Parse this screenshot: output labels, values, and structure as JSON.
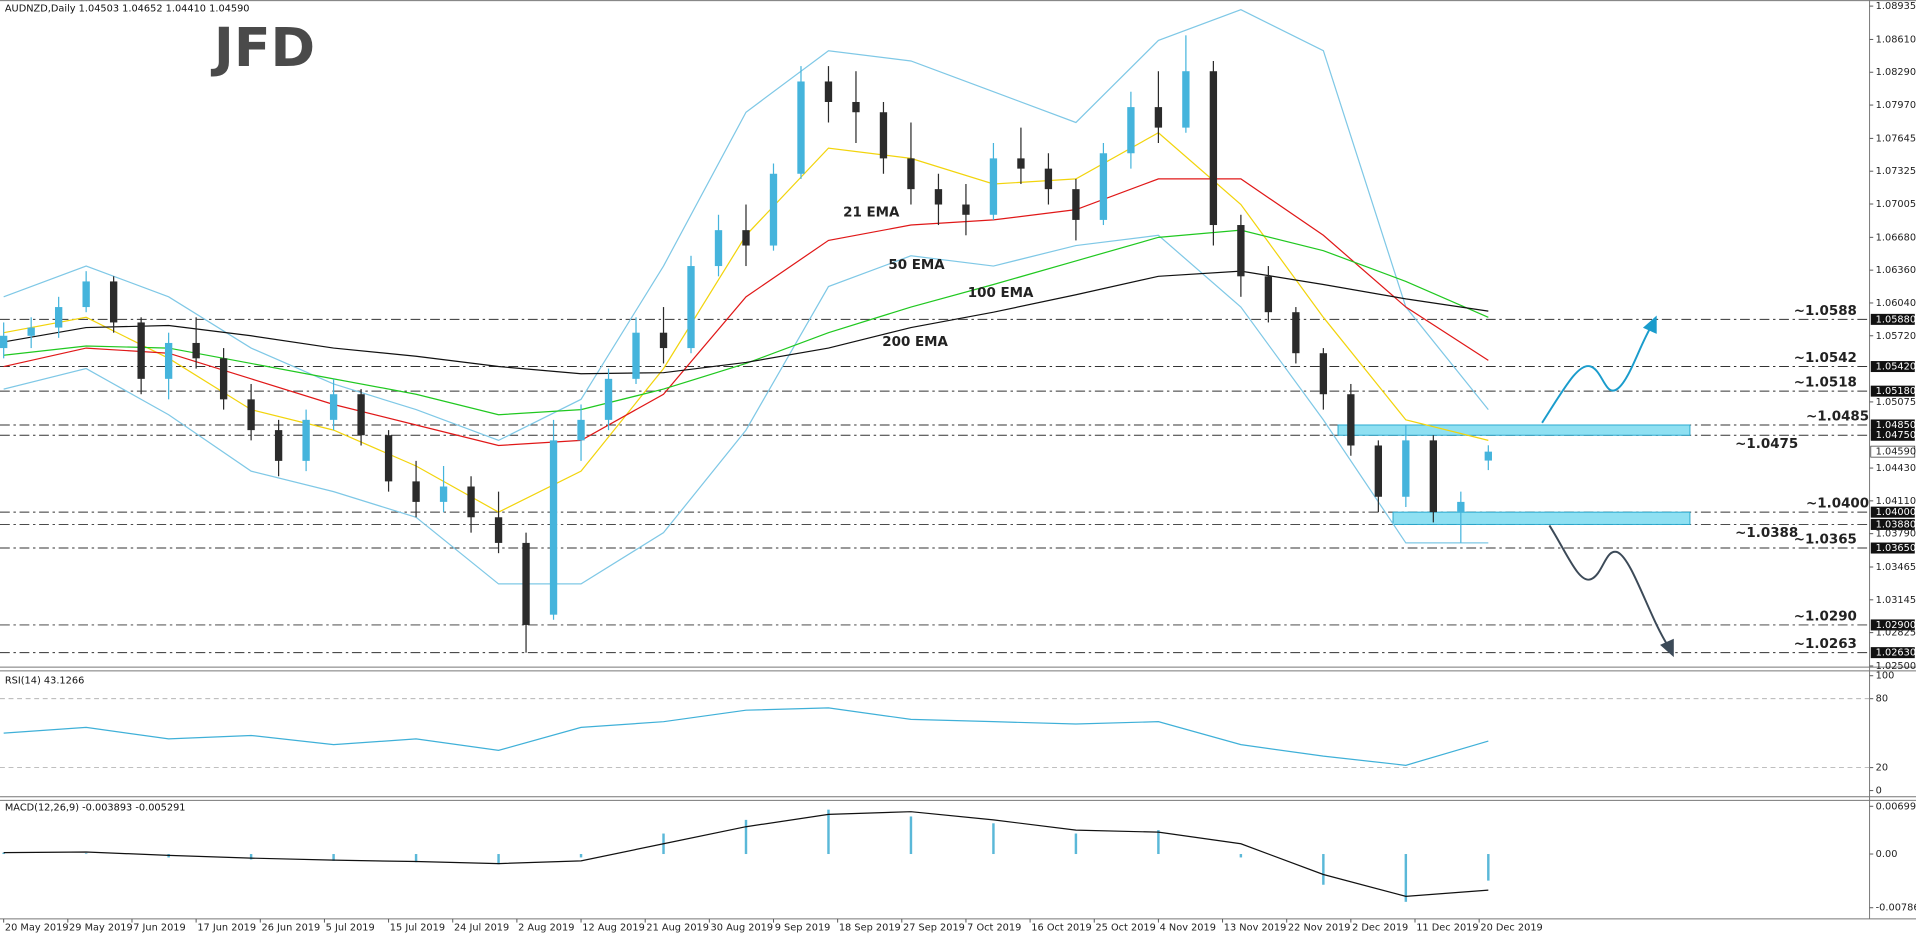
{
  "logo": "JFD",
  "chart_data": [
    {
      "type": "candlestick",
      "title": "AUDNZD,Daily  1.04503 1.04652 1.04410 1.04590",
      "xlim": [
        -0.4,
        203.6
      ],
      "xticks": [
        {
          "value": 0,
          "label": "20 May 2019"
        },
        {
          "value": 7,
          "label": "29 May 2019"
        },
        {
          "value": 14,
          "label": "7 Jun 2019"
        },
        {
          "value": 21,
          "label": "17 Jun 2019"
        },
        {
          "value": 28,
          "label": "26 Jun 2019"
        },
        {
          "value": 35,
          "label": "5 Jul 2019"
        },
        {
          "value": 42,
          "label": "15 Jul 2019"
        },
        {
          "value": 49,
          "label": "24 Jul 2019"
        },
        {
          "value": 56,
          "label": "2 Aug 2019"
        },
        {
          "value": 63,
          "label": "12 Aug 2019"
        },
        {
          "value": 70,
          "label": "21 Aug 2019"
        },
        {
          "value": 77,
          "label": "30 Aug 2019"
        },
        {
          "value": 84,
          "label": "9 Sep 2019"
        },
        {
          "value": 91,
          "label": "18 Sep 2019"
        },
        {
          "value": 98,
          "label": "27 Sep 2019"
        },
        {
          "value": 105,
          "label": "7 Oct 2019"
        },
        {
          "value": 112,
          "label": "16 Oct 2019"
        },
        {
          "value": 119,
          "label": "25 Oct 2019"
        },
        {
          "value": 126,
          "label": "4 Nov 2019"
        },
        {
          "value": 133,
          "label": "13 Nov 2019"
        },
        {
          "value": 140,
          "label": "22 Nov 2019"
        },
        {
          "value": 147,
          "label": "2 Dec 2019"
        },
        {
          "value": 154,
          "label": "11 Dec 2019"
        },
        {
          "value": 161,
          "label": "20 Dec 2019"
        }
      ],
      "ylim": [
        1.025,
        1.08935
      ],
      "yticks": [
        1.08935,
        {
          "value": 1.0861,
          "label": "1.08610"
        },
        {
          "value": 1.0829,
          "label": "1.08290"
        },
        {
          "value": 1.0797,
          "label": "1.07970"
        },
        1.07645,
        1.07325,
        1.07005,
        {
          "value": 1.0668,
          "label": "1.06680"
        },
        {
          "value": 1.0636,
          "label": "1.06360"
        },
        {
          "value": 1.0604,
          "label": "1.06040"
        },
        {
          "value": 1.0572,
          "label": "1.05720"
        },
        1.05075,
        {
          "value": 1.0443,
          "label": "1.04430"
        },
        {
          "value": 1.0411,
          "label": "1.04110"
        },
        {
          "value": 1.0379,
          "label": "1.03790"
        },
        1.03465,
        1.03145,
        1.02825,
        {
          "value": 1.025,
          "label": "1.02500"
        }
      ],
      "up_color": "#45b4dc",
      "down_color": "#2b2b2b",
      "candles": {
        "x": [
          0,
          3,
          6,
          9,
          12,
          15,
          18,
          21,
          24,
          27,
          30,
          33,
          36,
          39,
          42,
          45,
          48,
          51,
          54,
          57,
          60,
          63,
          66,
          69,
          72,
          75,
          78,
          81,
          84,
          87,
          90,
          93,
          96,
          99,
          102,
          105,
          108,
          111,
          114,
          117,
          120,
          123,
          126,
          129,
          132,
          135,
          138,
          141,
          144,
          147,
          150,
          153,
          156,
          159,
          162
        ],
        "open": [
          1.056,
          1.0572,
          1.058,
          1.06,
          1.0625,
          1.0585,
          1.053,
          1.0565,
          1.055,
          1.051,
          1.048,
          1.045,
          1.049,
          1.0515,
          1.0475,
          1.043,
          1.041,
          1.0425,
          1.0395,
          1.037,
          1.03,
          1.047,
          1.049,
          1.053,
          1.0575,
          1.056,
          1.064,
          1.0675,
          1.066,
          1.073,
          1.082,
          1.08,
          1.079,
          1.0745,
          1.0715,
          1.07,
          1.069,
          1.0745,
          1.0735,
          1.0715,
          1.0685,
          1.075,
          1.0795,
          1.0775,
          1.083,
          1.068,
          1.063,
          1.0595,
          1.0555,
          1.0515,
          1.0465,
          1.0415,
          1.047,
          1.04,
          1.04503
        ],
        "high": [
          1.0585,
          1.059,
          1.061,
          1.0635,
          1.063,
          1.059,
          1.0575,
          1.059,
          1.056,
          1.0525,
          1.049,
          1.05,
          1.053,
          1.052,
          1.048,
          1.045,
          1.0445,
          1.0435,
          1.042,
          1.038,
          1.049,
          1.0505,
          1.054,
          1.059,
          1.06,
          1.065,
          1.069,
          1.07,
          1.074,
          1.0835,
          1.0835,
          1.083,
          1.08,
          1.078,
          1.073,
          1.072,
          1.076,
          1.0775,
          1.075,
          1.0725,
          1.076,
          1.081,
          1.083,
          1.0865,
          1.084,
          1.069,
          1.064,
          1.06,
          1.056,
          1.0525,
          1.047,
          1.0485,
          1.0475,
          1.042,
          1.04652
        ],
        "low": [
          1.055,
          1.056,
          1.057,
          1.0595,
          1.0575,
          1.0515,
          1.051,
          1.054,
          1.05,
          1.047,
          1.0435,
          1.044,
          1.048,
          1.0465,
          1.042,
          1.0395,
          1.04,
          1.038,
          1.036,
          1.0263,
          1.0295,
          1.045,
          1.048,
          1.0525,
          1.0545,
          1.0555,
          1.063,
          1.064,
          1.0655,
          1.0725,
          1.078,
          1.076,
          1.073,
          1.07,
          1.068,
          1.067,
          1.0685,
          1.072,
          1.07,
          1.0665,
          1.068,
          1.0735,
          1.076,
          1.077,
          1.066,
          1.061,
          1.0585,
          1.0545,
          1.05,
          1.0455,
          1.04,
          1.0405,
          1.039,
          1.037,
          1.0441
        ],
        "close": [
          1.0572,
          1.058,
          1.06,
          1.0625,
          1.0585,
          1.053,
          1.0565,
          1.055,
          1.051,
          1.048,
          1.045,
          1.049,
          1.0515,
          1.0475,
          1.043,
          1.041,
          1.0425,
          1.0395,
          1.037,
          1.029,
          1.047,
          1.049,
          1.053,
          1.0575,
          1.056,
          1.064,
          1.0675,
          1.066,
          1.073,
          1.082,
          1.08,
          1.079,
          1.0745,
          1.0715,
          1.07,
          1.069,
          1.0745,
          1.0735,
          1.0715,
          1.0685,
          1.075,
          1.0795,
          1.0775,
          1.083,
          1.068,
          1.063,
          1.0595,
          1.0555,
          1.0515,
          1.0465,
          1.0415,
          1.047,
          1.04,
          1.041,
          1.0459
        ]
      },
      "last_tag": "1.04590",
      "x": [
        0,
        9,
        18,
        27,
        36,
        45,
        54,
        63,
        72,
        81,
        90,
        99,
        108,
        117,
        126,
        135,
        144,
        153,
        162
      ],
      "series": [
        {
          "color": "#7fc8e6",
          "values": [
            1.061,
            1.064,
            1.061,
            1.056,
            1.0525,
            1.05,
            1.047,
            1.051,
            1.064,
            1.079,
            1.085,
            1.084,
            1.081,
            1.078,
            1.086,
            1.089,
            1.085,
            1.06,
            1.05
          ]
        },
        {
          "color": "#7fc8e6",
          "values": [
            1.052,
            1.054,
            1.0495,
            1.044,
            1.042,
            1.0395,
            1.033,
            1.033,
            1.038,
            1.048,
            1.062,
            1.065,
            1.064,
            1.066,
            1.067,
            1.06,
            1.049,
            1.037,
            1.037
          ]
        },
        {
          "name": "21 EMA",
          "color": "#f2d40c",
          "values": [
            1.0575,
            1.059,
            1.055,
            1.05,
            1.048,
            1.0445,
            1.04,
            1.044,
            1.054,
            1.067,
            1.0755,
            1.0745,
            1.072,
            1.0725,
            1.077,
            1.07,
            1.059,
            1.049,
            1.047
          ]
        },
        {
          "name": "50 EMA",
          "color": "#e01818",
          "values": [
            1.0542,
            1.056,
            1.0555,
            1.053,
            1.0505,
            1.0485,
            1.0465,
            1.047,
            1.0515,
            1.061,
            1.0665,
            1.068,
            1.0685,
            1.0695,
            1.0725,
            1.0725,
            1.067,
            1.06,
            1.0548
          ]
        },
        {
          "name": "100 EMA",
          "color": "#20c820",
          "values": [
            1.0553,
            1.0562,
            1.056,
            1.0545,
            1.053,
            1.0515,
            1.0495,
            1.05,
            1.052,
            1.0545,
            1.0575,
            1.06,
            1.0622,
            1.0645,
            1.0668,
            1.0675,
            1.0655,
            1.0625,
            1.059
          ]
        },
        {
          "name": "200 EMA",
          "color": "#111111",
          "values": [
            1.0566,
            1.058,
            1.0582,
            1.0572,
            1.056,
            1.0552,
            1.0542,
            1.0535,
            1.0536,
            1.0546,
            1.056,
            1.058,
            1.0595,
            1.0612,
            1.063,
            1.0635,
            1.0622,
            1.0608,
            1.0596
          ]
        }
      ],
      "levels": [
        {
          "value": 1.0588,
          "label": "~1.0588",
          "tag": "1.05880",
          "color": "#1a9ccc"
        },
        {
          "value": 1.0542,
          "label": "~1.0542",
          "tag": "1.05420",
          "color": "#1a9ccc"
        },
        {
          "value": 1.0518,
          "label": "~1.0518",
          "tag": "1.05180",
          "color": "#1a9ccc"
        },
        {
          "value": 1.0485,
          "label": "~1.0485",
          "tag": "1.04850",
          "color": "#1a9ccc"
        },
        {
          "value": 1.0475,
          "label": "~1.0475",
          "tag": "1.04750",
          "color": "#1a9ccc"
        },
        {
          "value": 1.04,
          "label": "~1.0400",
          "tag": "1.04000",
          "color": "#333333"
        },
        {
          "value": 1.0388,
          "label": "~1.0388",
          "tag": "1.03880",
          "color": "#333333"
        },
        {
          "value": 1.0365,
          "label": "~1.0365",
          "tag": "1.03650",
          "color": "#333333"
        },
        {
          "value": 1.029,
          "label": "~1.0290",
          "tag": "1.02900",
          "color": "#333333"
        },
        {
          "value": 1.0263,
          "label": "~1.0263",
          "tag": "1.02630",
          "color": "#333333"
        }
      ]
    },
    {
      "type": "line",
      "title": "RSI(14) 43.1266",
      "ylim": [
        0,
        100
      ],
      "yticks": [
        100,
        80,
        20,
        0
      ],
      "x": [
        0,
        9,
        18,
        27,
        36,
        45,
        54,
        63,
        72,
        81,
        90,
        99,
        108,
        117,
        126,
        135,
        144,
        153,
        162
      ],
      "series": [
        {
          "color": "#3fb0d8",
          "values": [
            50,
            55,
            45,
            48,
            40,
            45,
            35,
            55,
            60,
            70,
            72,
            62,
            60,
            58,
            60,
            40,
            30,
            22,
            43.1266
          ]
        }
      ]
    },
    {
      "type": "bar",
      "title": "MACD(12,26,9) -0.003893 -0.005291",
      "ylim": [
        -0.0095,
        0.0075
      ],
      "yticks": [
        0.006992,
        {
          "value": 0,
          "label": "0.00"
        },
        -0.007866
      ],
      "x": [
        0,
        9,
        18,
        27,
        36,
        45,
        54,
        63,
        72,
        81,
        90,
        99,
        108,
        117,
        126,
        135,
        144,
        153,
        162
      ],
      "series": [
        {
          "type": "bar",
          "color": "#5ab8d8",
          "values": [
            0.0002,
            0.0001,
            -0.0005,
            -0.0008,
            -0.001,
            -0.0012,
            -0.0015,
            -0.0005,
            0.003,
            0.005,
            0.0065,
            0.0055,
            0.0045,
            0.003,
            0.0035,
            -0.0005,
            -0.0045,
            -0.007,
            -0.003893
          ]
        },
        {
          "type": "line",
          "color": "#111111",
          "values": [
            0.0002,
            0.0003,
            -0.0002,
            -0.0006,
            -0.0009,
            -0.0011,
            -0.0014,
            -0.001,
            0.0015,
            0.004,
            0.0058,
            0.0062,
            0.005,
            0.0035,
            0.0032,
            0.0015,
            -0.003,
            -0.0062,
            -0.005291
          ]
        }
      ]
    }
  ]
}
